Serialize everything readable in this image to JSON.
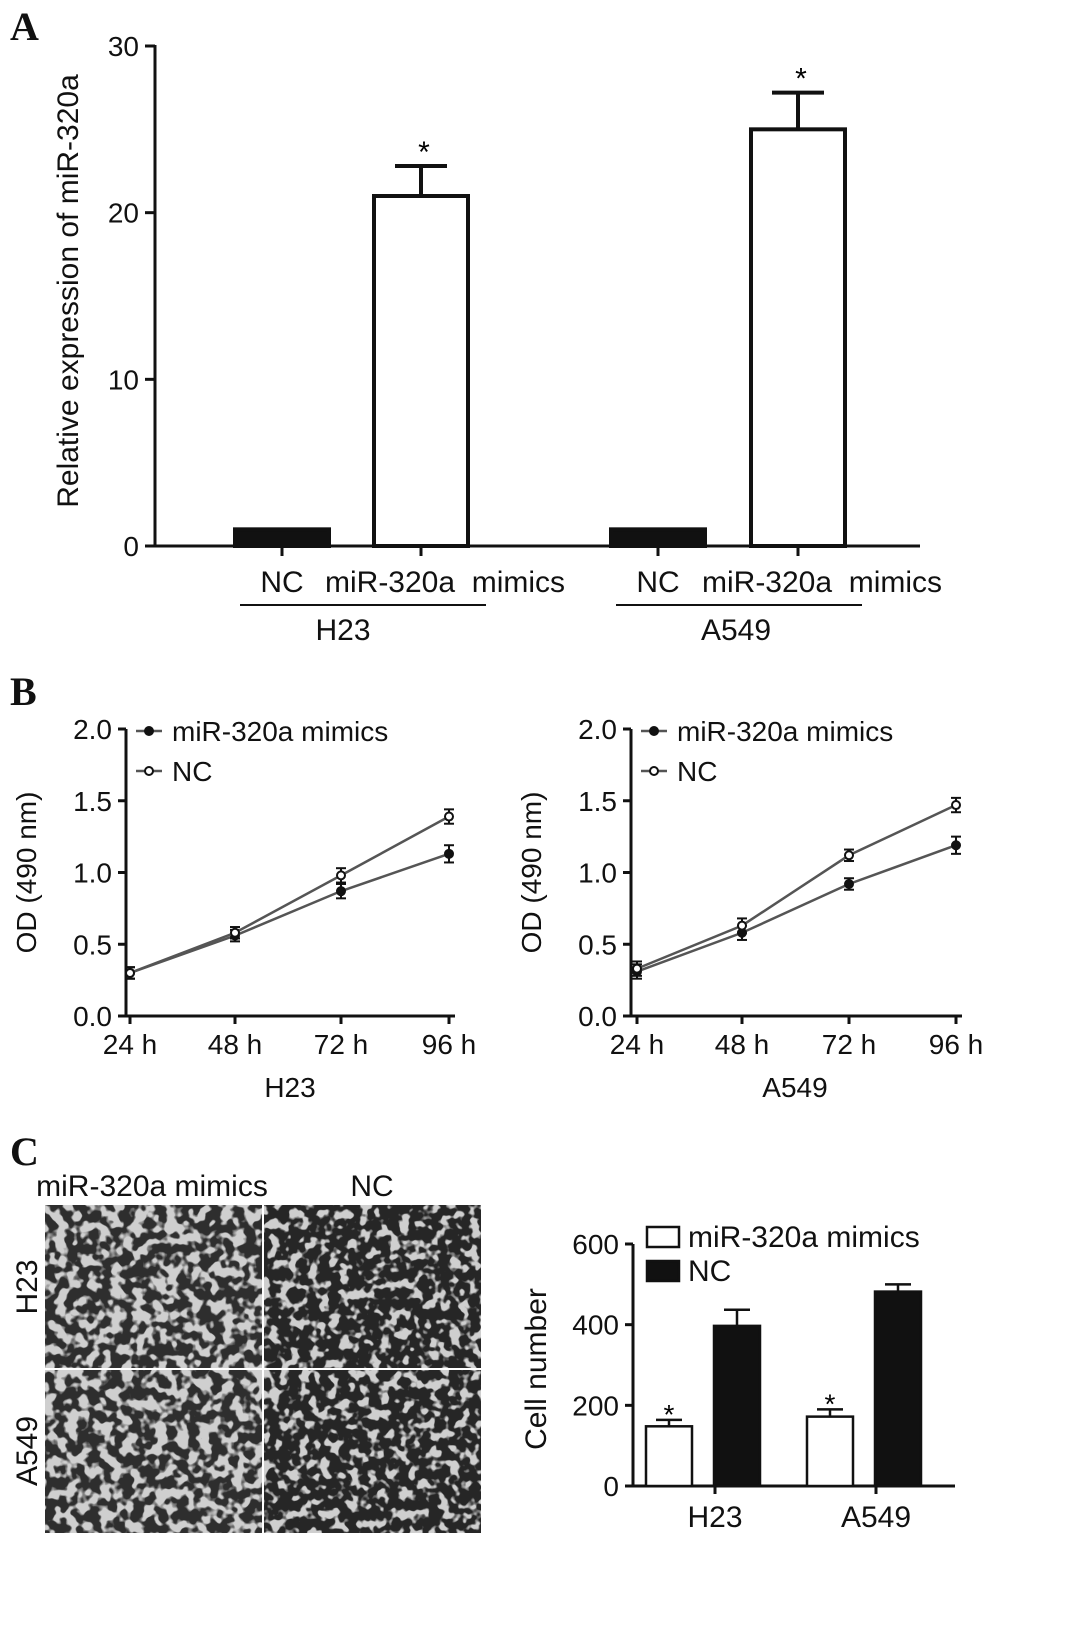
{
  "panels": {
    "A": {
      "label": "A",
      "chart_data": {
        "type": "bar",
        "ylabel": "Relative expression of miR-320a",
        "ylim": [
          0,
          30
        ],
        "yticks": [
          0,
          10,
          20,
          30
        ],
        "groups": [
          {
            "name": "H23",
            "bars": [
              {
                "label": "NC",
                "value": 1.0,
                "error": 0.1,
                "fill": "#111111",
                "star": ""
              },
              {
                "label": "miR-320a  mimics",
                "value": 21.0,
                "error": 1.8,
                "fill": "#ffffff",
                "star": "*"
              }
            ]
          },
          {
            "name": "A549",
            "bars": [
              {
                "label": "NC",
                "value": 1.0,
                "error": 0.1,
                "fill": "#111111",
                "star": ""
              },
              {
                "label": "miR-320a  mimics",
                "value": 25.0,
                "error": 2.2,
                "fill": "#ffffff",
                "star": "*"
              }
            ]
          }
        ]
      }
    },
    "B": {
      "label": "B",
      "chart_data": [
        {
          "type": "line",
          "title": "H23",
          "ylabel": "OD (490 nm)",
          "ylim": [
            0,
            2.0
          ],
          "yticks": [
            "0.0",
            "0.5",
            "1.0",
            "1.5",
            "2.0"
          ],
          "x": [
            "24 h",
            "48 h",
            "72 h",
            "96 h"
          ],
          "series": [
            {
              "name": "miR-320a mimics",
              "marker": "filled",
              "values": [
                0.3,
                0.56,
                0.87,
                1.13
              ],
              "errors": [
                0.04,
                0.04,
                0.05,
                0.06
              ]
            },
            {
              "name": "NC",
              "marker": "open",
              "values": [
                0.3,
                0.58,
                0.98,
                1.39
              ],
              "errors": [
                0.04,
                0.04,
                0.05,
                0.05
              ]
            }
          ]
        },
        {
          "type": "line",
          "title": "A549",
          "ylabel": "OD (490 nm)",
          "ylim": [
            0,
            2.0
          ],
          "yticks": [
            "0.0",
            "0.5",
            "1.0",
            "1.5",
            "2.0"
          ],
          "x": [
            "24 h",
            "48 h",
            "72 h",
            "96 h"
          ],
          "series": [
            {
              "name": "miR-320a mimics",
              "marker": "filled",
              "values": [
                0.31,
                0.58,
                0.92,
                1.19
              ],
              "errors": [
                0.05,
                0.05,
                0.04,
                0.06
              ]
            },
            {
              "name": "NC",
              "marker": "open",
              "values": [
                0.33,
                0.63,
                1.12,
                1.47
              ],
              "errors": [
                0.05,
                0.05,
                0.04,
                0.05
              ]
            }
          ]
        }
      ]
    },
    "C": {
      "label": "C",
      "images": {
        "col_labels": [
          "miR-320a   mimics",
          "NC"
        ],
        "row_labels": [
          "H23",
          "A549"
        ]
      },
      "chart_data": {
        "type": "bar",
        "ylabel": "Cell number",
        "ylim": [
          0,
          600
        ],
        "yticks": [
          0,
          200,
          400,
          600
        ],
        "categories": [
          "H23",
          "A549"
        ],
        "series": [
          {
            "name": "miR-320a mimics",
            "fill": "#ffffff",
            "values": [
              148,
              172
            ],
            "errors": [
              16,
              18
            ],
            "stars": [
              "*",
              "*"
            ]
          },
          {
            "name": "NC",
            "fill": "#111111",
            "values": [
              397,
              482
            ],
            "errors": [
              40,
              18
            ],
            "stars": [
              "",
              ""
            ]
          }
        ]
      }
    }
  }
}
